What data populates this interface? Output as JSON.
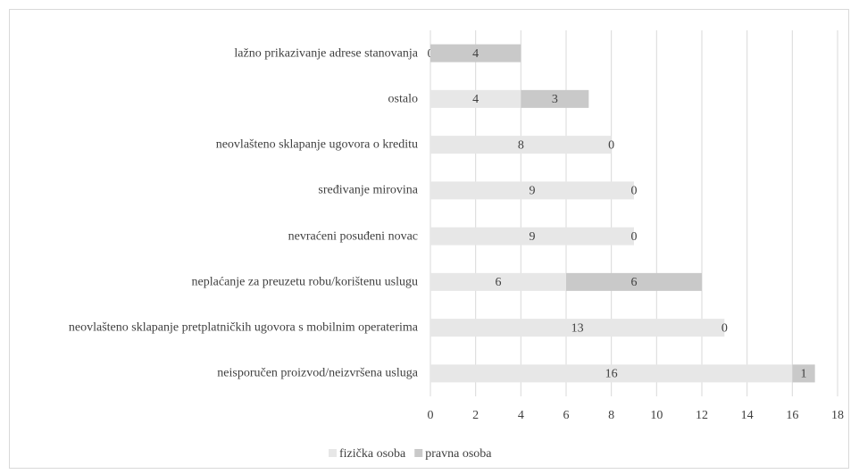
{
  "chart_data": {
    "type": "stacked-bar-horizontal",
    "categories": [
      "lažno prikazivanje adrese stanovanja",
      "ostalo",
      "neovlašteno sklapanje ugovora o kreditu",
      "sređivanje mirovina",
      "nevraćeni posuđeni novac",
      "neplaćanje za preuzetu robu/korištenu uslugu",
      "neovlašteno sklapanje pretplatničkih ugovora s mobilnim operaterima",
      "neisporučen proizvod/neizvršena usluga"
    ],
    "series": [
      {
        "name": "fizička osoba",
        "color": "#e7e7e7",
        "values": [
          0,
          4,
          8,
          9,
          9,
          6,
          13,
          16
        ]
      },
      {
        "name": "pravna osoba",
        "color": "#c9c9c9",
        "values": [
          4,
          3,
          0,
          0,
          0,
          6,
          0,
          1
        ]
      }
    ],
    "xlim": [
      0,
      18
    ],
    "xticks": [
      0,
      2,
      4,
      6,
      8,
      10,
      12,
      14,
      16,
      18
    ],
    "grid": true,
    "legend": "bottom"
  }
}
